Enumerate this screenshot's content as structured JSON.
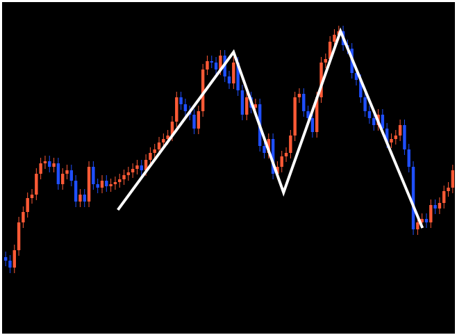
{
  "chart_data": {
    "type": "candlestick",
    "up_color": "#ff5a36",
    "down_color": "#1f4fff",
    "background": "#000000",
    "xlim": [
      -0.5,
      102.5
    ],
    "ylim": [
      0,
      477
    ],
    "open": [
      110,
      105,
      95,
      120,
      160,
      175,
      195,
      200,
      230,
      245,
      248,
      240,
      245,
      215,
      230,
      235,
      220,
      190,
      200,
      190,
      240,
      215,
      210,
      220,
      212,
      215,
      218,
      222,
      228,
      232,
      237,
      242,
      235,
      250,
      260,
      265,
      275,
      280,
      285,
      305,
      340,
      330,
      320,
      315,
      295,
      320,
      380,
      392,
      390,
      380,
      400,
      370,
      360,
      390,
      350,
      315,
      340,
      325,
      330,
      270,
      260,
      280,
      230,
      240,
      255,
      260,
      285,
      340,
      345,
      320,
      310,
      290,
      340,
      390,
      395,
      420,
      430,
      435,
      415,
      410,
      375,
      365,
      340,
      320,
      310,
      300,
      315,
      295,
      275,
      280,
      285,
      300,
      265,
      240,
      150,
      160,
      165,
      160,
      185,
      180,
      188,
      205,
      210
    ],
    "high": [
      118,
      113,
      128,
      168,
      183,
      203,
      208,
      238,
      253,
      256,
      256,
      253,
      253,
      238,
      243,
      243,
      228,
      208,
      208,
      248,
      248,
      223,
      228,
      228,
      223,
      226,
      230,
      236,
      240,
      245,
      250,
      250,
      258,
      268,
      273,
      283,
      288,
      293,
      313,
      348,
      348,
      338,
      328,
      323,
      328,
      388,
      400,
      400,
      398,
      408,
      408,
      378,
      398,
      398,
      358,
      348,
      348,
      338,
      338,
      278,
      288,
      288,
      248,
      263,
      268,
      293,
      348,
      353,
      353,
      328,
      318,
      348,
      398,
      403,
      428,
      438,
      443,
      443,
      423,
      418,
      383,
      373,
      348,
      328,
      318,
      323,
      323,
      303,
      288,
      293,
      308,
      308,
      273,
      248,
      168,
      173,
      173,
      193,
      193,
      196,
      213,
      218,
      243
    ],
    "low": [
      97,
      87,
      87,
      112,
      152,
      167,
      187,
      192,
      222,
      237,
      232,
      232,
      207,
      207,
      222,
      212,
      182,
      182,
      182,
      182,
      207,
      202,
      202,
      204,
      204,
      207,
      210,
      214,
      220,
      224,
      229,
      227,
      227,
      242,
      252,
      257,
      267,
      272,
      277,
      297,
      322,
      312,
      307,
      287,
      287,
      312,
      372,
      382,
      372,
      372,
      362,
      352,
      352,
      342,
      307,
      307,
      317,
      317,
      262,
      252,
      252,
      222,
      222,
      232,
      247,
      252,
      277,
      332,
      312,
      302,
      282,
      282,
      332,
      382,
      387,
      412,
      422,
      407,
      402,
      367,
      357,
      332,
      312,
      302,
      292,
      292,
      287,
      267,
      267,
      272,
      277,
      257,
      232,
      142,
      142,
      152,
      152,
      152,
      172,
      172,
      180,
      197,
      202
    ],
    "close": [
      105,
      95,
      120,
      160,
      175,
      195,
      200,
      230,
      245,
      248,
      240,
      245,
      215,
      230,
      235,
      220,
      190,
      200,
      190,
      240,
      215,
      210,
      220,
      212,
      215,
      218,
      222,
      228,
      232,
      237,
      242,
      235,
      250,
      260,
      265,
      275,
      280,
      285,
      305,
      340,
      330,
      320,
      315,
      295,
      320,
      380,
      392,
      390,
      380,
      400,
      370,
      360,
      390,
      350,
      315,
      340,
      325,
      330,
      270,
      260,
      280,
      230,
      240,
      255,
      260,
      285,
      340,
      345,
      320,
      310,
      290,
      340,
      390,
      395,
      420,
      430,
      435,
      415,
      410,
      375,
      365,
      340,
      320,
      310,
      300,
      315,
      295,
      275,
      280,
      285,
      300,
      265,
      240,
      150,
      160,
      165,
      160,
      185,
      180,
      188,
      205,
      210,
      235
    ],
    "overlay": {
      "color": "#ffffff",
      "x": [
        25.6,
        52,
        63.4,
        76.4,
        95.1
      ],
      "values": [
        178,
        405,
        203,
        435,
        152
      ]
    }
  }
}
